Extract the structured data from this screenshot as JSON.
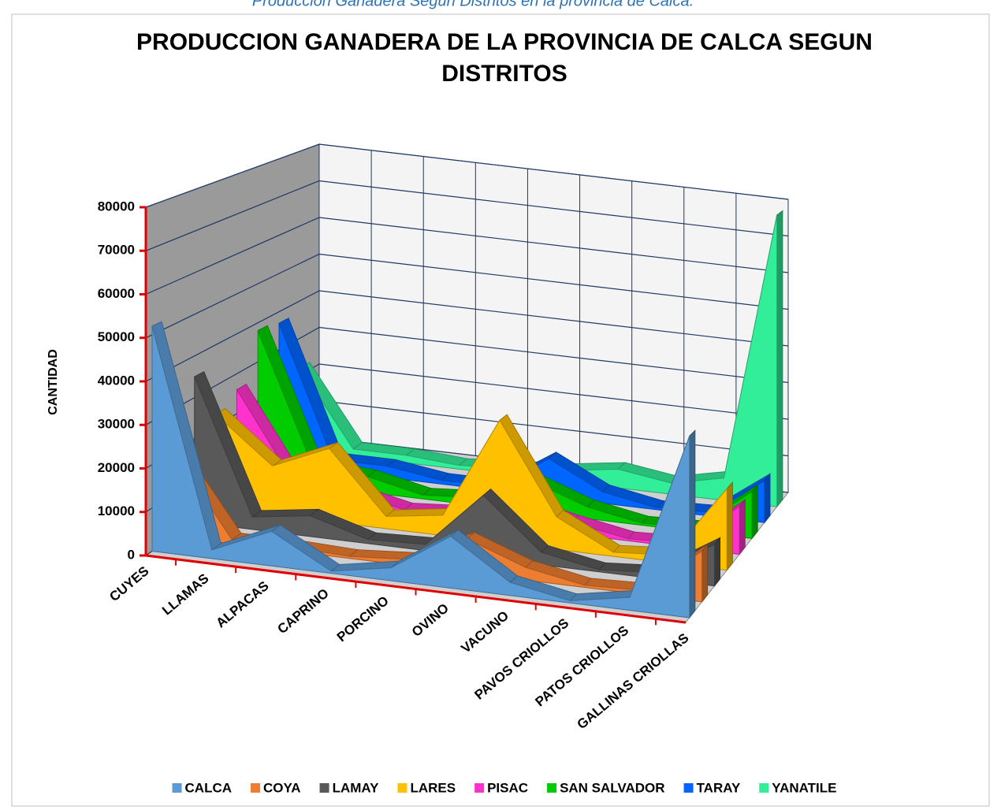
{
  "caption": "Producción Ganadera Según Distritos  en la provincia de Calca.",
  "chart_data": {
    "type": "area3d",
    "title": "PRODUCCION GANADERA DE LA PROVINCIA DE CALCA  SEGUN DISTRITOS",
    "y_label": "CANTIDAD",
    "categories": [
      "CUYES",
      "LLAMAS",
      "ALPACAS",
      "CAPRINO",
      "PORCINO",
      "OVINO",
      "VACUNO",
      "PAVOS CRIOLLOS",
      "PATOS CRIOLLOS",
      "GALLINAS CRIOLLAS"
    ],
    "series": [
      {
        "name": "CALCA",
        "color": "#5b9bd5",
        "values": [
          52000,
          2000,
          8000,
          500,
          3000,
          12000,
          3000,
          500,
          3000,
          42000
        ]
      },
      {
        "name": "COYA",
        "color": "#ed7d31",
        "values": [
          20000,
          1000,
          1000,
          500,
          1500,
          8000,
          3000,
          500,
          1000,
          12000
        ]
      },
      {
        "name": "LAMAY",
        "color": "#595959",
        "values": [
          35000,
          3000,
          5000,
          1000,
          1500,
          15000,
          3000,
          500,
          1500,
          10000
        ]
      },
      {
        "name": "LARES",
        "color": "#ffc000",
        "values": [
          23000,
          12000,
          18000,
          3000,
          5000,
          30000,
          8000,
          1000,
          2000,
          20000
        ]
      },
      {
        "name": "PISAC",
        "color": "#ff33cc",
        "values": [
          26000,
          5000,
          4000,
          1000,
          2000,
          6000,
          3000,
          500,
          1000,
          12000
        ]
      },
      {
        "name": "SAN SALVADOR",
        "color": "#00cc00",
        "values": [
          38000,
          5000,
          4000,
          1000,
          2000,
          8000,
          3000,
          500,
          1000,
          12000
        ]
      },
      {
        "name": "TARAY",
        "color": "#0066ff",
        "values": [
          37000,
          3000,
          3000,
          1000,
          1000,
          10000,
          3000,
          500,
          1000,
          11000
        ]
      },
      {
        "name": "YANATILE",
        "color": "#33ee99",
        "values": [
          22000,
          2000,
          2000,
          1000,
          2000,
          3000,
          5000,
          3000,
          6000,
          78000
        ]
      }
    ],
    "ylim": [
      0,
      80000
    ],
    "yticks": [
      0,
      10000,
      20000,
      30000,
      40000,
      50000,
      60000,
      70000,
      80000
    ],
    "grid": true
  }
}
